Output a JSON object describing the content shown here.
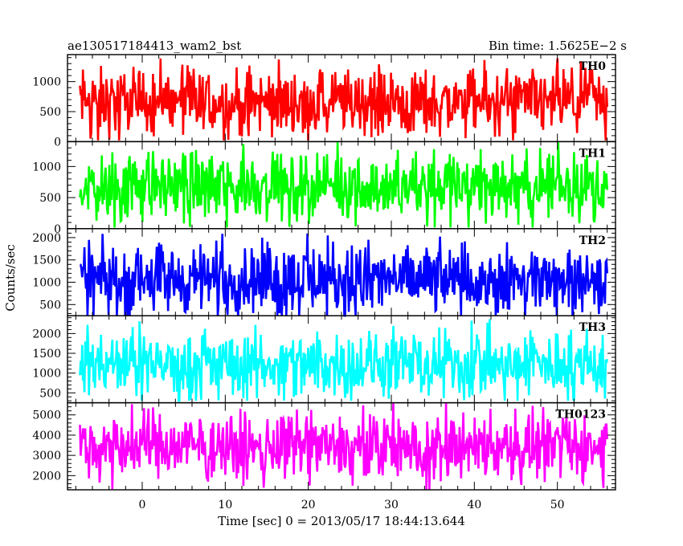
{
  "header": {
    "title": "ae130517184413_wam2_bst",
    "bin_time": "Bin time: 1.5625E−2 s"
  },
  "axes": {
    "xlabel": "Time [sec] 0 = 2013/05/17 18:44:13.644",
    "ylabel": "Counts/sec",
    "x_ticks": [
      "0",
      "10",
      "20",
      "30",
      "40",
      "50"
    ]
  },
  "chart_data": {
    "type": "line",
    "title": "ae130517184413_wam2_bst",
    "subtitle": "Bin time: 1.5625E−2 s",
    "xlabel": "Time [sec] 0 = 2013/05/17 18:44:13.644",
    "ylabel": "Counts/sec",
    "xlim": [
      -9,
      57
    ],
    "x_data_range": [
      -7.5,
      56
    ],
    "x_ticks": [
      0,
      10,
      20,
      30,
      40,
      50
    ],
    "grid": false,
    "panels": [
      {
        "name": "TH0",
        "color": "#ff0000",
        "ylim": [
          0,
          1450
        ],
        "yticks": [
          0,
          500,
          1000
        ],
        "mean": 650,
        "min": 20,
        "max": 1450
      },
      {
        "name": "TH1",
        "color": "#00ff00",
        "ylim": [
          0,
          1400
        ],
        "yticks": [
          0,
          500,
          1000
        ],
        "mean": 700,
        "min": 20,
        "max": 1400
      },
      {
        "name": "TH2",
        "color": "#0000ff",
        "ylim": [
          250,
          2200
        ],
        "yticks": [
          500,
          1000,
          1500,
          2000
        ],
        "mean": 1050,
        "min": 250,
        "max": 2200
      },
      {
        "name": "TH3",
        "color": "#00ffff",
        "ylim": [
          250,
          2450
        ],
        "yticks": [
          500,
          1000,
          1500,
          2000
        ],
        "mean": 1200,
        "min": 300,
        "max": 2450
      },
      {
        "name": "TH0123",
        "color": "#ff00ff",
        "ylim": [
          1300,
          5600
        ],
        "yticks": [
          2000,
          3000,
          4000,
          5000
        ],
        "mean": 3400,
        "min": 1300,
        "max": 5600
      }
    ]
  }
}
